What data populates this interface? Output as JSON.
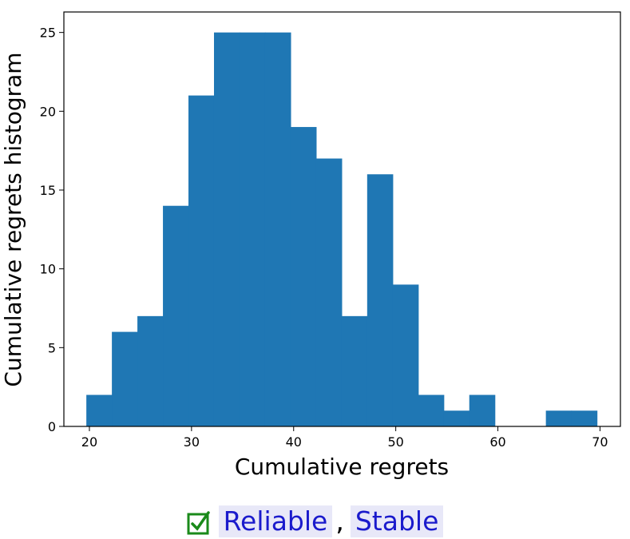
{
  "chart_data": {
    "type": "bar",
    "xlabel": "Cumulative regrets",
    "ylabel": "Cumulative regrets histogram",
    "xlim": [
      17.5,
      72.0
    ],
    "ylim": [
      0,
      26.3
    ],
    "xticks": [
      20,
      30,
      40,
      50,
      60,
      70
    ],
    "yticks": [
      0,
      5,
      10,
      15,
      20,
      25
    ],
    "bin_edges": [
      19.7,
      22.2,
      24.7,
      27.2,
      29.7,
      32.2,
      34.7,
      37.2,
      39.7,
      42.2,
      44.7,
      47.2,
      49.7,
      52.2,
      54.7,
      57.2,
      59.7,
      62.2,
      64.7,
      67.2,
      69.7
    ],
    "values": [
      2,
      6,
      7,
      14,
      21,
      25,
      25,
      25,
      19,
      17,
      7,
      16,
      9,
      2,
      1,
      2,
      0,
      0,
      1,
      1
    ],
    "bar_color": "#1f77b4",
    "grid": false
  },
  "footer": {
    "check_icon": "checkbox-checked-icon",
    "tags": [
      "Reliable",
      "Stable"
    ],
    "separator": ",",
    "check_color": "#1a8a1a",
    "text_color": "#1a1acc"
  }
}
